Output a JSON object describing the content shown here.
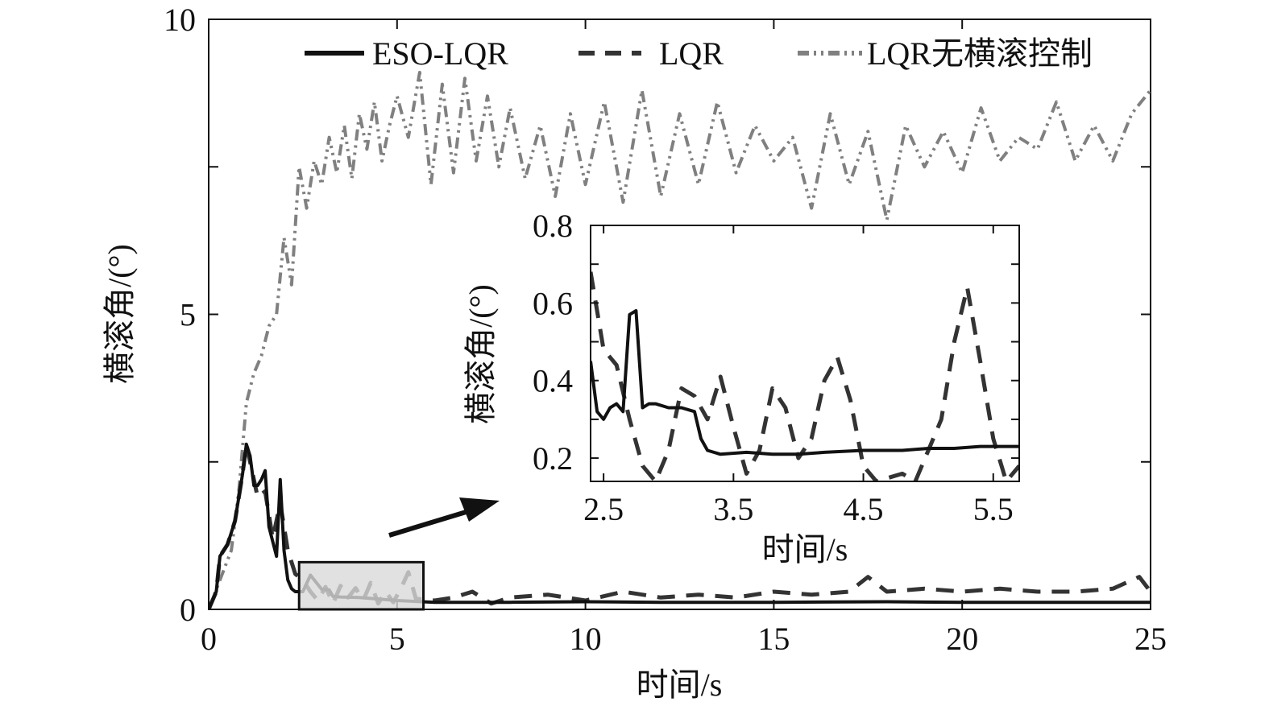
{
  "chart_data": [
    {
      "type": "line",
      "xlabel": "时间/s",
      "ylabel": "横滚角/(°)",
      "xlim": [
        0,
        25
      ],
      "ylim": [
        0,
        10
      ],
      "xticks": [
        0,
        5,
        10,
        15,
        20,
        25
      ],
      "yticks": [
        0,
        5,
        10
      ],
      "grid": false,
      "legend_position": "top",
      "series": [
        {
          "name": "ESO-LQR",
          "style": "solid",
          "color": "#111111",
          "x": [
            0,
            0.2,
            0.3,
            0.5,
            0.7,
            0.9,
            1.0,
            1.1,
            1.2,
            1.3,
            1.4,
            1.5,
            1.6,
            1.7,
            1.8,
            1.9,
            2.0,
            2.1,
            2.2,
            2.3,
            2.5,
            2.7,
            3.0,
            3.2,
            3.3,
            3.5,
            4.0,
            5.0,
            6.0,
            8.0,
            10.0,
            12.0,
            15.0,
            18.0,
            20.0,
            22.0,
            25.0
          ],
          "y": [
            0,
            0.3,
            0.9,
            1.1,
            1.5,
            2.3,
            2.8,
            2.6,
            2.1,
            2.1,
            2.2,
            2.35,
            1.4,
            1.15,
            0.9,
            2.2,
            1.0,
            0.5,
            0.35,
            0.3,
            0.3,
            0.58,
            0.34,
            0.33,
            0.22,
            0.21,
            0.2,
            0.15,
            0.12,
            0.12,
            0.13,
            0.12,
            0.12,
            0.13,
            0.12,
            0.12,
            0.12
          ]
        },
        {
          "name": "LQR",
          "style": "dashed",
          "color": "#333333",
          "x": [
            0,
            0.2,
            0.3,
            0.5,
            0.7,
            0.9,
            1.0,
            1.1,
            1.3,
            1.5,
            1.7,
            1.9,
            2.1,
            2.3,
            2.5,
            2.7,
            2.9,
            3.1,
            3.3,
            3.5,
            3.7,
            3.9,
            4.1,
            4.3,
            4.5,
            4.7,
            4.9,
            5.1,
            5.3,
            5.5,
            6.0,
            6.5,
            7.0,
            7.5,
            8.0,
            9.0,
            10.0,
            11.0,
            12.0,
            13.0,
            14.0,
            15.0,
            16.0,
            17.0,
            17.5,
            18.0,
            19.0,
            20.0,
            21.0,
            22.0,
            23.0,
            24.0,
            24.7,
            25.0
          ],
          "y": [
            0,
            0.3,
            0.9,
            1.1,
            1.5,
            2.3,
            2.8,
            2.5,
            1.9,
            2.0,
            1.2,
            1.8,
            1.0,
            0.6,
            0.5,
            0.3,
            0.15,
            0.38,
            0.1,
            0.4,
            0.2,
            0.36,
            0.15,
            0.45,
            0.1,
            0.3,
            0.12,
            0.35,
            0.63,
            0.18,
            0.15,
            0.2,
            0.3,
            0.1,
            0.2,
            0.25,
            0.15,
            0.3,
            0.2,
            0.25,
            0.2,
            0.3,
            0.25,
            0.3,
            0.55,
            0.3,
            0.35,
            0.3,
            0.35,
            0.3,
            0.3,
            0.35,
            0.55,
            0.3
          ]
        },
        {
          "name": "LQR无横滚控制",
          "style": "dashdotdot",
          "color": "#808080",
          "x": [
            0,
            0.3,
            0.6,
            0.8,
            1.0,
            1.2,
            1.4,
            1.6,
            1.8,
            2.0,
            2.2,
            2.4,
            2.6,
            2.8,
            3.0,
            3.2,
            3.4,
            3.6,
            3.8,
            4.0,
            4.2,
            4.4,
            4.6,
            4.8,
            5.0,
            5.3,
            5.6,
            5.9,
            6.2,
            6.5,
            6.8,
            7.1,
            7.4,
            7.7,
            8.0,
            8.4,
            8.8,
            9.2,
            9.6,
            10.0,
            10.5,
            11.0,
            11.5,
            12.0,
            12.5,
            13.0,
            13.5,
            14.0,
            14.5,
            15.0,
            15.5,
            16.0,
            16.5,
            17.0,
            17.5,
            18.0,
            18.5,
            19.0,
            19.5,
            20.0,
            20.5,
            21.0,
            21.5,
            22.0,
            22.5,
            23.0,
            23.5,
            24.0,
            24.5,
            25.0
          ],
          "y": [
            0,
            0.5,
            1.0,
            2.0,
            3.5,
            4.0,
            4.3,
            4.8,
            5.0,
            6.3,
            5.5,
            7.5,
            6.8,
            7.6,
            7.2,
            8.0,
            7.4,
            8.2,
            7.3,
            8.4,
            7.8,
            8.6,
            7.6,
            8.2,
            8.7,
            8.0,
            9.1,
            7.2,
            8.9,
            7.4,
            9.0,
            7.6,
            8.7,
            7.5,
            8.5,
            7.3,
            8.2,
            7.0,
            8.4,
            7.2,
            8.6,
            6.9,
            8.8,
            7.0,
            8.4,
            7.2,
            8.6,
            7.4,
            8.2,
            7.6,
            8.0,
            6.8,
            8.4,
            7.2,
            8.1,
            6.6,
            8.2,
            7.5,
            8.1,
            7.4,
            8.5,
            7.6,
            8.0,
            7.8,
            8.6,
            7.6,
            8.2,
            7.6,
            8.4,
            8.8
          ]
        }
      ],
      "highlight_box": {
        "x": [
          2.4,
          5.7
        ],
        "y": [
          0,
          0.8
        ]
      }
    },
    {
      "type": "line",
      "xlabel": "时间/s",
      "ylabel": "横滚角/(°)",
      "xlim": [
        2.4,
        5.7
      ],
      "ylim": [
        0.14,
        0.8
      ],
      "xticks": [
        2.5,
        3.5,
        4.5,
        5.5
      ],
      "yticks": [
        0.2,
        0.4,
        0.6,
        0.8
      ],
      "grid": false,
      "series": [
        {
          "name": "ESO-LQR",
          "style": "solid",
          "color": "#111111",
          "x": [
            2.4,
            2.45,
            2.5,
            2.55,
            2.6,
            2.65,
            2.7,
            2.75,
            2.8,
            2.85,
            2.9,
            3.0,
            3.1,
            3.2,
            3.25,
            3.3,
            3.4,
            3.6,
            3.8,
            4.0,
            4.2,
            4.5,
            4.8,
            5.0,
            5.2,
            5.4,
            5.7
          ],
          "y": [
            0.45,
            0.32,
            0.3,
            0.33,
            0.34,
            0.32,
            0.57,
            0.58,
            0.33,
            0.34,
            0.34,
            0.33,
            0.33,
            0.32,
            0.25,
            0.22,
            0.21,
            0.215,
            0.21,
            0.21,
            0.215,
            0.22,
            0.22,
            0.225,
            0.225,
            0.23,
            0.23
          ]
        },
        {
          "name": "LQR",
          "style": "dashed",
          "color": "#333333",
          "x": [
            2.4,
            2.5,
            2.6,
            2.7,
            2.8,
            2.9,
            3.0,
            3.1,
            3.2,
            3.3,
            3.4,
            3.5,
            3.6,
            3.7,
            3.8,
            3.9,
            4.0,
            4.1,
            4.2,
            4.3,
            4.4,
            4.5,
            4.6,
            4.7,
            4.8,
            4.9,
            5.0,
            5.1,
            5.2,
            5.3,
            5.4,
            5.5,
            5.6,
            5.7
          ],
          "y": [
            0.68,
            0.48,
            0.44,
            0.3,
            0.18,
            0.14,
            0.22,
            0.38,
            0.36,
            0.3,
            0.41,
            0.28,
            0.16,
            0.22,
            0.38,
            0.33,
            0.2,
            0.25,
            0.4,
            0.46,
            0.35,
            0.18,
            0.14,
            0.15,
            0.16,
            0.14,
            0.22,
            0.3,
            0.5,
            0.64,
            0.45,
            0.25,
            0.14,
            0.18
          ]
        }
      ]
    }
  ]
}
